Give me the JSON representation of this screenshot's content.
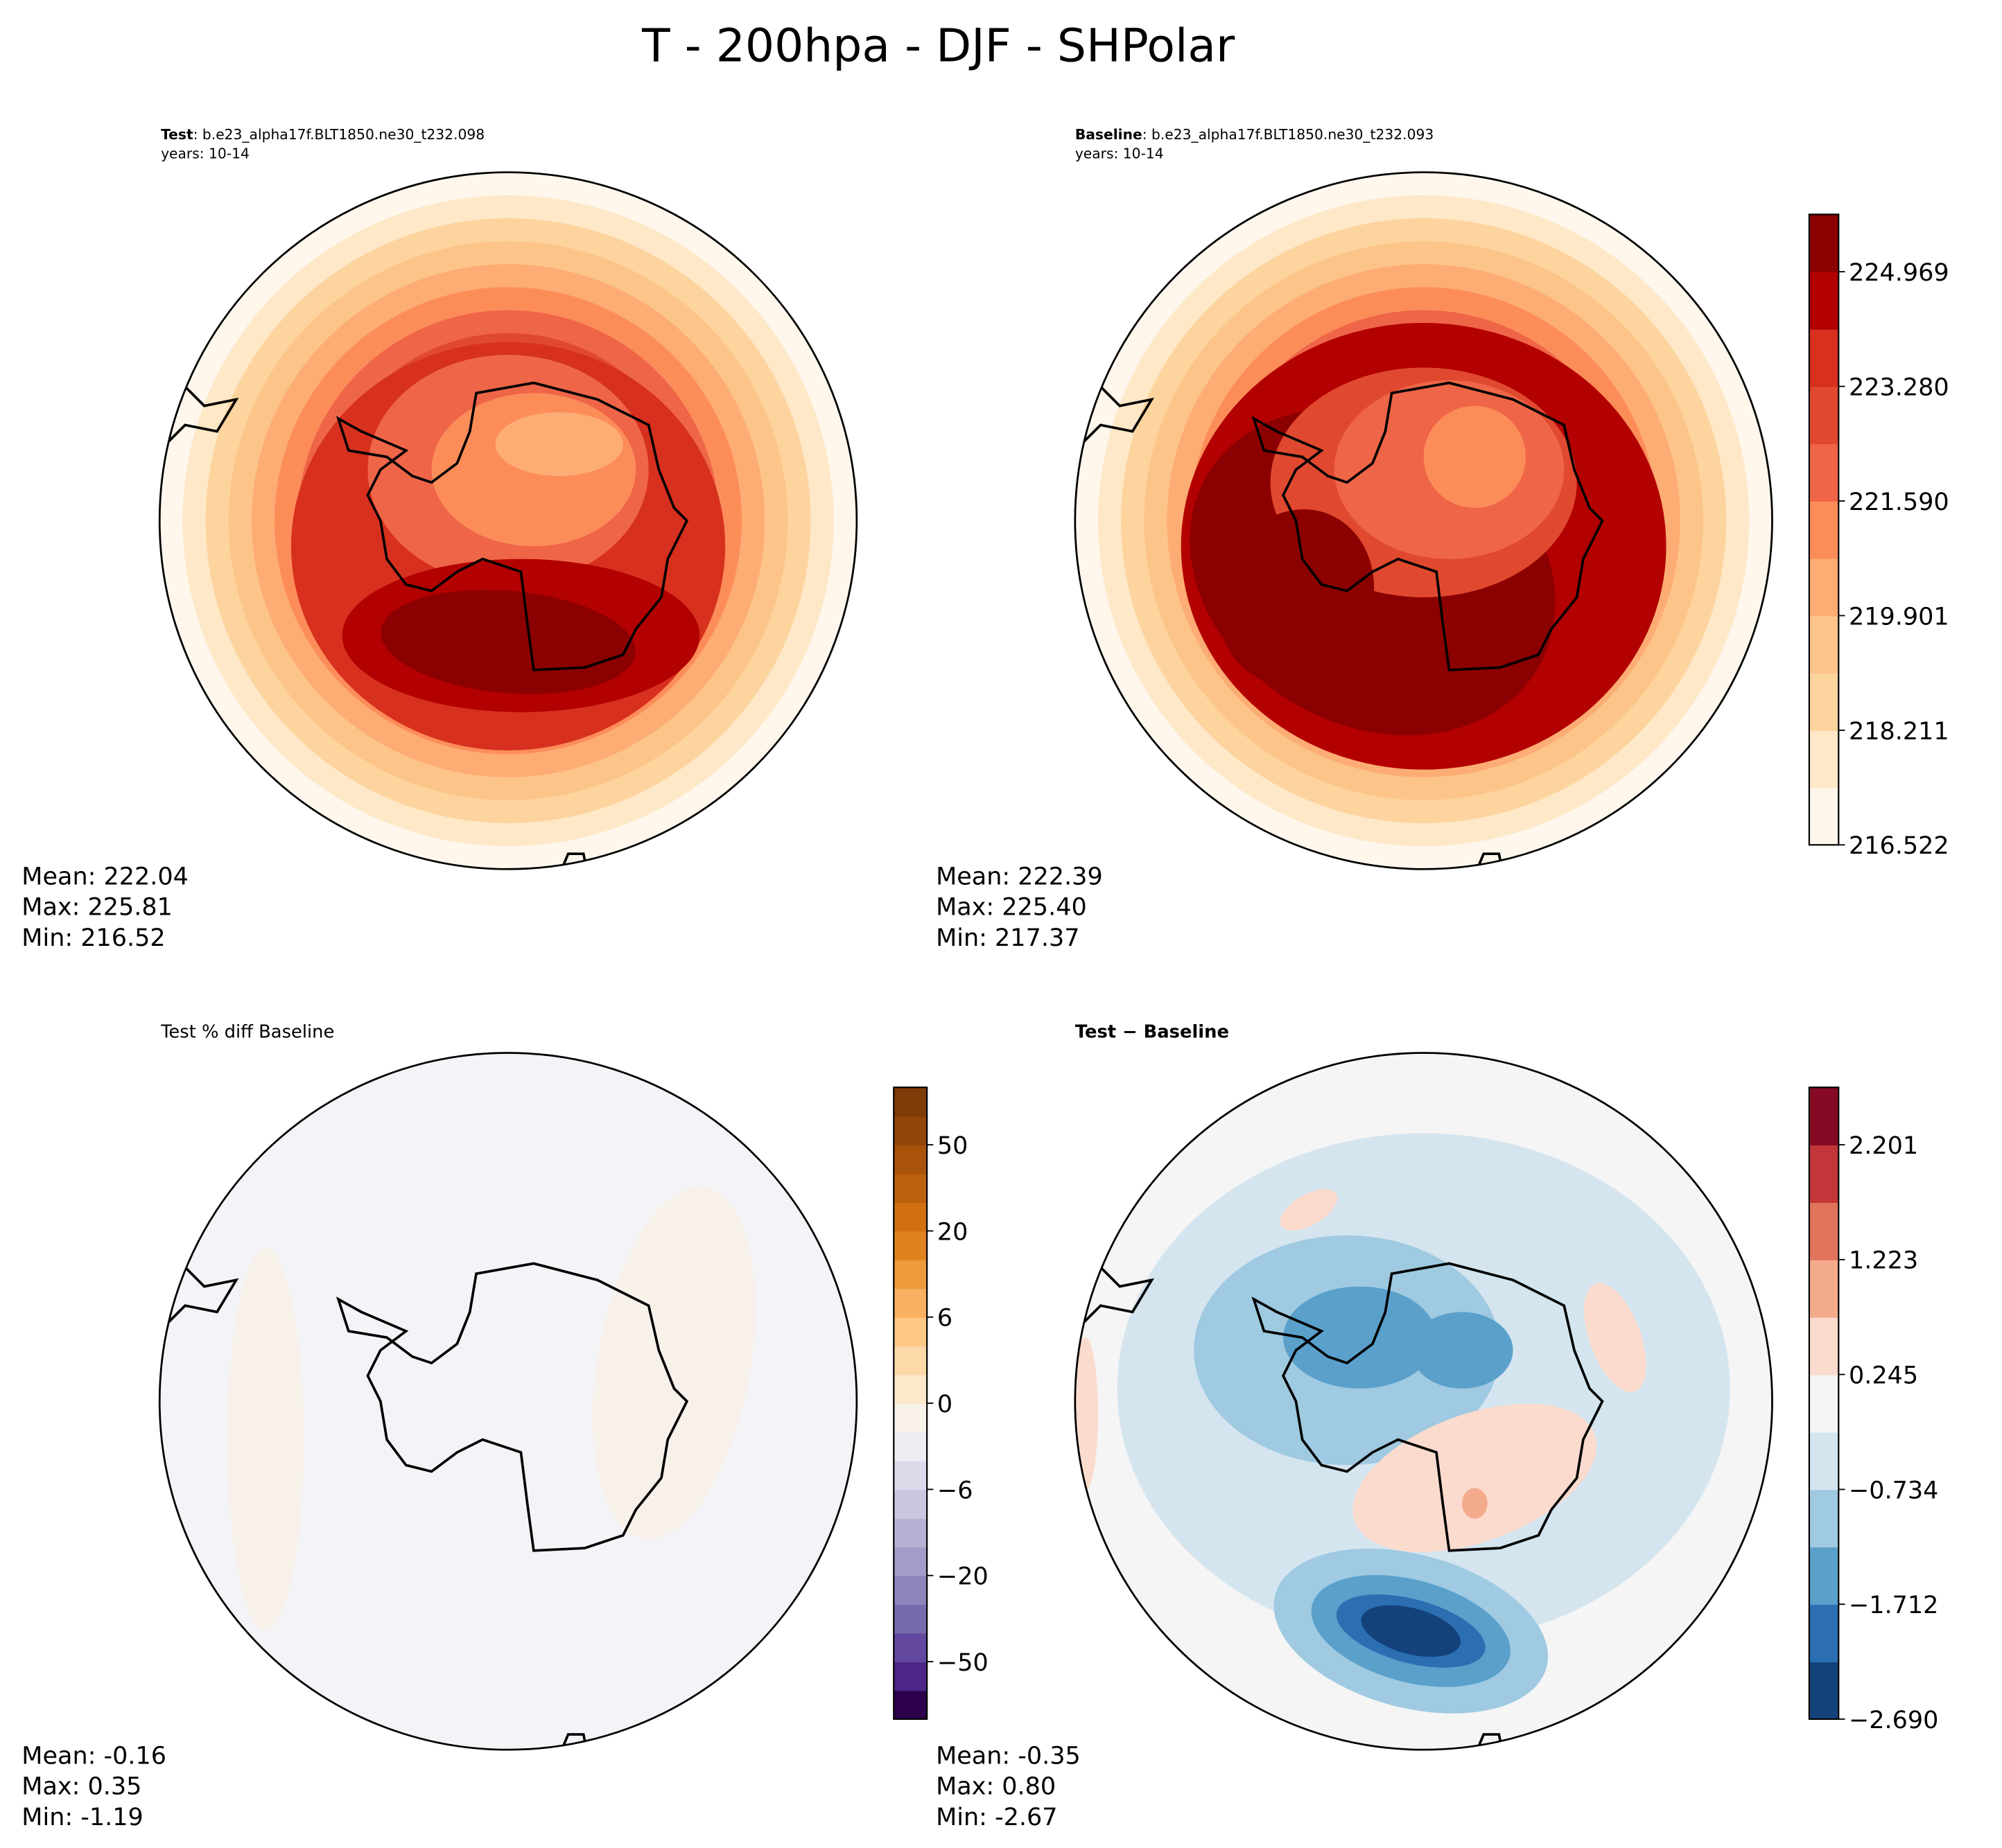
{
  "title": "T - 200hpa - DJF - SHPolar",
  "chart_data": [
    {
      "type": "heatmap",
      "projection": "south-polar-stereographic",
      "panel": "test",
      "label_bold": "Test",
      "label_rest": ": b.e23_alpha17f.BLT1850.ne30_t232.098",
      "years": "years: 10-14",
      "colormap": "OrRd",
      "stats": {
        "mean": "Mean: 222.04",
        "max": "Max: 225.81",
        "min": "Min: 216.52"
      }
    },
    {
      "type": "heatmap",
      "projection": "south-polar-stereographic",
      "panel": "baseline",
      "label_bold": "Baseline",
      "label_rest": ": b.e23_alpha17f.BLT1850.ne30_t232.093",
      "years": "years: 10-14",
      "colormap": "OrRd",
      "colorbar": {
        "levels": [
          216.522,
          217.367,
          218.211,
          219.056,
          219.901,
          220.745,
          221.59,
          222.435,
          223.28,
          224.124,
          224.969,
          225.813
        ],
        "tick_labels": [
          "216.522",
          "218.211",
          "219.901",
          "221.590",
          "223.280",
          "224.969"
        ],
        "colors": [
          "#fff7ec",
          "#fee8c8",
          "#fdd49e",
          "#fdc48a",
          "#fdac74",
          "#fc8d59",
          "#ef6548",
          "#e0492f",
          "#d7301f",
          "#b30000",
          "#8b0000"
        ]
      },
      "stats": {
        "mean": "Mean: 222.39",
        "max": "Max: 225.40",
        "min": "Min: 217.37"
      }
    },
    {
      "type": "heatmap",
      "projection": "south-polar-stereographic",
      "panel": "percent-diff",
      "label": "Test % diff Baseline",
      "colormap": "PuOr_r",
      "colorbar": {
        "tick_labels": [
          "50",
          "20",
          "6",
          "0",
          "−6",
          "−20",
          "−50"
        ],
        "tick_values": [
          50,
          20,
          6,
          0,
          -6,
          -20,
          -50
        ],
        "colors": [
          "#7f3b08",
          "#93460a",
          "#a8520c",
          "#bc5f0e",
          "#d0700f",
          "#e0831f",
          "#ee9a3d",
          "#f8b160",
          "#fdc785",
          "#fdd9a8",
          "#fde8cc",
          "#f7f1ea",
          "#ececf2",
          "#dcdbeb",
          "#cac8e1",
          "#b7b2d5",
          "#a39cc8",
          "#8d84ba",
          "#776aac",
          "#61479d",
          "#4c2788",
          "#2d004b"
        ]
      },
      "stats": {
        "mean": "Mean: -0.16",
        "max": "Max:  0.35",
        "min": "Min: -1.19"
      }
    },
    {
      "type": "heatmap",
      "projection": "south-polar-stereographic",
      "panel": "difference",
      "label": "Test − Baseline",
      "colormap": "RdBu_r",
      "colorbar": {
        "tick_labels": [
          "2.201",
          "1.223",
          "0.245",
          "−0.734",
          "−1.712",
          "−2.690"
        ],
        "tick_values": [
          2.201,
          1.223,
          0.245,
          -0.734,
          -1.712,
          -2.69
        ],
        "colors": [
          "#14437b",
          "#2b6fb2",
          "#5aa0cb",
          "#9fcae1",
          "#d4e5f0",
          "#f5f5f5",
          "#fbdbcd",
          "#f4ab8b",
          "#e0735a",
          "#c23639",
          "#870a24"
        ]
      },
      "stats": {
        "mean": "Mean: -0.35",
        "max": "Max:  0.80",
        "min": "Min: -2.67"
      }
    }
  ]
}
